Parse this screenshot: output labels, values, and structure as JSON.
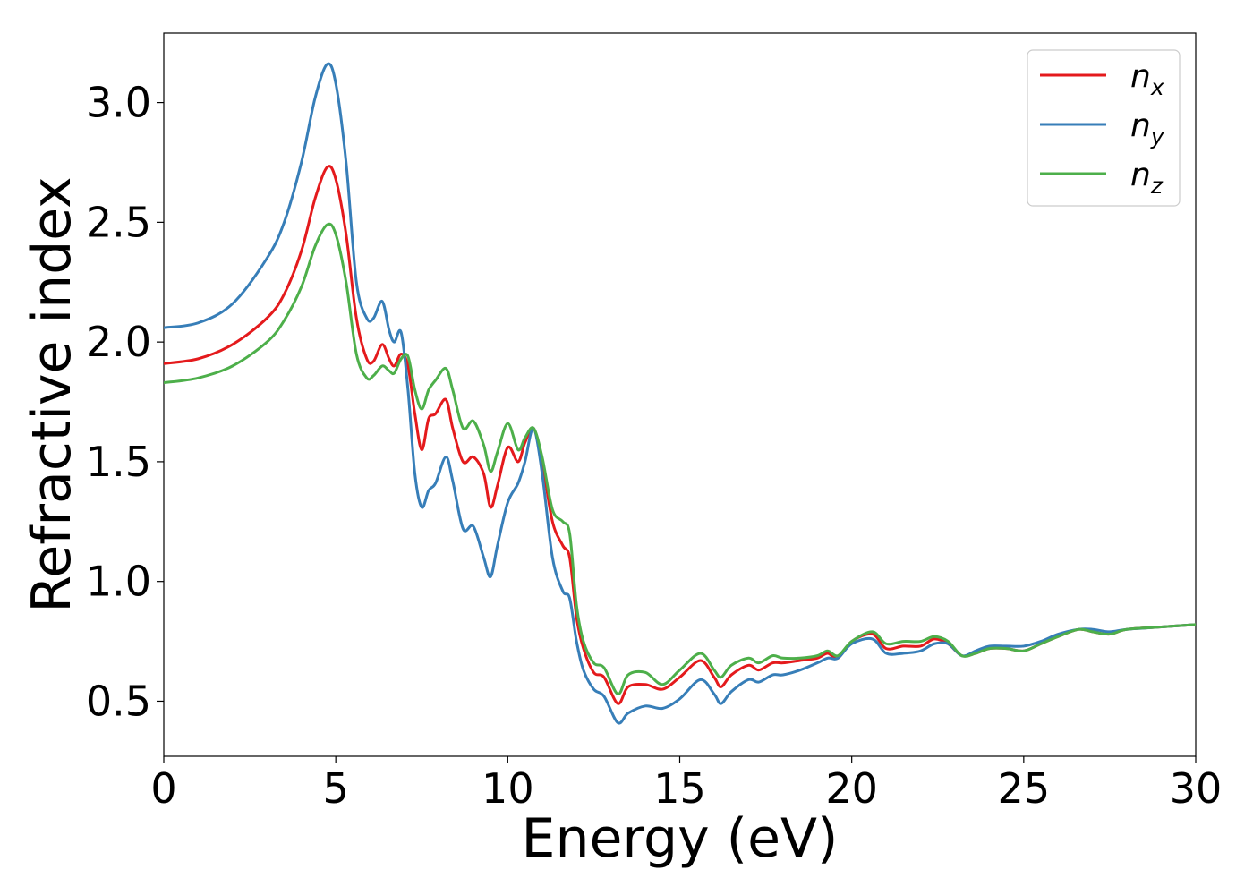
{
  "chart_data": {
    "type": "line",
    "title": "",
    "xlabel": "Energy (eV)",
    "ylabel": "Refractive index",
    "xlim": [
      0,
      30
    ],
    "ylim": [
      0.27,
      3.29
    ],
    "xticks": [
      0,
      5,
      10,
      15,
      20,
      25,
      30
    ],
    "yticks": [
      0.5,
      1.0,
      1.5,
      2.0,
      2.5,
      3.0
    ],
    "xtick_labels": [
      "0",
      "5",
      "10",
      "15",
      "20",
      "25",
      "30"
    ],
    "ytick_labels": [
      "0.5",
      "1.0",
      "1.5",
      "2.0",
      "2.5",
      "3.0"
    ],
    "grid": false,
    "legend_position": "top-right",
    "series": [
      {
        "name": "n",
        "subscript": "x",
        "color": "#e41a1c",
        "points": [
          [
            0,
            1.91
          ],
          [
            1,
            1.93
          ],
          [
            2,
            1.99
          ],
          [
            3,
            2.1
          ],
          [
            3.5,
            2.2
          ],
          [
            4,
            2.38
          ],
          [
            4.4,
            2.6
          ],
          [
            4.75,
            2.73
          ],
          [
            5,
            2.68
          ],
          [
            5.3,
            2.45
          ],
          [
            5.6,
            2.1
          ],
          [
            5.9,
            1.93
          ],
          [
            6.1,
            1.92
          ],
          [
            6.35,
            1.99
          ],
          [
            6.55,
            1.93
          ],
          [
            6.7,
            1.9
          ],
          [
            6.9,
            1.95
          ],
          [
            7.1,
            1.9
          ],
          [
            7.3,
            1.7
          ],
          [
            7.5,
            1.55
          ],
          [
            7.7,
            1.68
          ],
          [
            7.9,
            1.7
          ],
          [
            8.2,
            1.76
          ],
          [
            8.4,
            1.64
          ],
          [
            8.7,
            1.5
          ],
          [
            9,
            1.52
          ],
          [
            9.3,
            1.45
          ],
          [
            9.5,
            1.31
          ],
          [
            9.7,
            1.4
          ],
          [
            10,
            1.56
          ],
          [
            10.3,
            1.5
          ],
          [
            10.5,
            1.58
          ],
          [
            10.75,
            1.64
          ],
          [
            11,
            1.5
          ],
          [
            11.3,
            1.25
          ],
          [
            11.6,
            1.15
          ],
          [
            11.8,
            1.1
          ],
          [
            12,
            0.85
          ],
          [
            12.2,
            0.72
          ],
          [
            12.5,
            0.62
          ],
          [
            12.8,
            0.6
          ],
          [
            13.2,
            0.49
          ],
          [
            13.5,
            0.56
          ],
          [
            14,
            0.57
          ],
          [
            14.5,
            0.55
          ],
          [
            15,
            0.6
          ],
          [
            15.6,
            0.67
          ],
          [
            16,
            0.6
          ],
          [
            16.2,
            0.56
          ],
          [
            16.5,
            0.61
          ],
          [
            17,
            0.65
          ],
          [
            17.3,
            0.63
          ],
          [
            17.7,
            0.66
          ],
          [
            18,
            0.66
          ],
          [
            18.5,
            0.67
          ],
          [
            19,
            0.68
          ],
          [
            19.3,
            0.7
          ],
          [
            19.6,
            0.68
          ],
          [
            20,
            0.75
          ],
          [
            20.6,
            0.78
          ],
          [
            21,
            0.72
          ],
          [
            21.5,
            0.73
          ],
          [
            22,
            0.73
          ],
          [
            22.4,
            0.76
          ],
          [
            22.8,
            0.74
          ],
          [
            23.2,
            0.69
          ],
          [
            23.6,
            0.7
          ],
          [
            24,
            0.72
          ],
          [
            24.5,
            0.72
          ],
          [
            25,
            0.71
          ],
          [
            25.5,
            0.74
          ],
          [
            26,
            0.77
          ],
          [
            26.6,
            0.8
          ],
          [
            27,
            0.79
          ],
          [
            27.5,
            0.78
          ],
          [
            28,
            0.8
          ],
          [
            29,
            0.81
          ],
          [
            30,
            0.82
          ]
        ]
      },
      {
        "name": "n",
        "subscript": "y",
        "color": "#377eb8",
        "points": [
          [
            0,
            2.06
          ],
          [
            1,
            2.08
          ],
          [
            2,
            2.16
          ],
          [
            3,
            2.35
          ],
          [
            3.5,
            2.5
          ],
          [
            4,
            2.75
          ],
          [
            4.4,
            3.02
          ],
          [
            4.75,
            3.16
          ],
          [
            5,
            3.08
          ],
          [
            5.3,
            2.75
          ],
          [
            5.6,
            2.25
          ],
          [
            5.9,
            2.1
          ],
          [
            6.1,
            2.1
          ],
          [
            6.35,
            2.17
          ],
          [
            6.55,
            2.05
          ],
          [
            6.7,
            2.0
          ],
          [
            6.9,
            2.04
          ],
          [
            7.1,
            1.8
          ],
          [
            7.3,
            1.45
          ],
          [
            7.5,
            1.31
          ],
          [
            7.7,
            1.38
          ],
          [
            7.9,
            1.41
          ],
          [
            8.2,
            1.52
          ],
          [
            8.4,
            1.42
          ],
          [
            8.7,
            1.22
          ],
          [
            9,
            1.23
          ],
          [
            9.3,
            1.1
          ],
          [
            9.5,
            1.02
          ],
          [
            9.7,
            1.15
          ],
          [
            10,
            1.33
          ],
          [
            10.3,
            1.41
          ],
          [
            10.5,
            1.5
          ],
          [
            10.75,
            1.64
          ],
          [
            11,
            1.45
          ],
          [
            11.3,
            1.1
          ],
          [
            11.6,
            0.96
          ],
          [
            11.8,
            0.93
          ],
          [
            12,
            0.75
          ],
          [
            12.2,
            0.63
          ],
          [
            12.5,
            0.55
          ],
          [
            12.8,
            0.52
          ],
          [
            13.2,
            0.41
          ],
          [
            13.5,
            0.45
          ],
          [
            14,
            0.48
          ],
          [
            14.5,
            0.47
          ],
          [
            15,
            0.51
          ],
          [
            15.6,
            0.59
          ],
          [
            16,
            0.53
          ],
          [
            16.2,
            0.49
          ],
          [
            16.5,
            0.54
          ],
          [
            17,
            0.59
          ],
          [
            17.3,
            0.58
          ],
          [
            17.7,
            0.61
          ],
          [
            18,
            0.61
          ],
          [
            18.5,
            0.63
          ],
          [
            19,
            0.66
          ],
          [
            19.3,
            0.68
          ],
          [
            19.6,
            0.68
          ],
          [
            20,
            0.74
          ],
          [
            20.6,
            0.76
          ],
          [
            21,
            0.7
          ],
          [
            21.5,
            0.7
          ],
          [
            22,
            0.71
          ],
          [
            22.4,
            0.74
          ],
          [
            22.8,
            0.74
          ],
          [
            23.2,
            0.69
          ],
          [
            23.6,
            0.71
          ],
          [
            24,
            0.73
          ],
          [
            24.5,
            0.73
          ],
          [
            25,
            0.73
          ],
          [
            25.5,
            0.75
          ],
          [
            26,
            0.78
          ],
          [
            26.6,
            0.8
          ],
          [
            27,
            0.8
          ],
          [
            27.5,
            0.79
          ],
          [
            28,
            0.8
          ],
          [
            29,
            0.81
          ],
          [
            30,
            0.82
          ]
        ]
      },
      {
        "name": "n",
        "subscript": "z",
        "color": "#4daf4a",
        "points": [
          [
            0,
            1.83
          ],
          [
            1,
            1.85
          ],
          [
            2,
            1.9
          ],
          [
            3,
            2.0
          ],
          [
            3.5,
            2.09
          ],
          [
            4,
            2.23
          ],
          [
            4.4,
            2.4
          ],
          [
            4.75,
            2.49
          ],
          [
            5,
            2.45
          ],
          [
            5.3,
            2.25
          ],
          [
            5.6,
            1.95
          ],
          [
            5.9,
            1.85
          ],
          [
            6.1,
            1.86
          ],
          [
            6.35,
            1.9
          ],
          [
            6.55,
            1.88
          ],
          [
            6.7,
            1.87
          ],
          [
            6.9,
            1.93
          ],
          [
            7.1,
            1.94
          ],
          [
            7.3,
            1.8
          ],
          [
            7.5,
            1.72
          ],
          [
            7.7,
            1.8
          ],
          [
            7.9,
            1.84
          ],
          [
            8.2,
            1.89
          ],
          [
            8.4,
            1.8
          ],
          [
            8.7,
            1.64
          ],
          [
            9,
            1.67
          ],
          [
            9.3,
            1.57
          ],
          [
            9.5,
            1.46
          ],
          [
            9.7,
            1.54
          ],
          [
            10,
            1.66
          ],
          [
            10.3,
            1.55
          ],
          [
            10.5,
            1.6
          ],
          [
            10.75,
            1.64
          ],
          [
            11,
            1.52
          ],
          [
            11.3,
            1.3
          ],
          [
            11.6,
            1.25
          ],
          [
            11.8,
            1.2
          ],
          [
            12,
            0.9
          ],
          [
            12.2,
            0.75
          ],
          [
            12.5,
            0.66
          ],
          [
            12.8,
            0.64
          ],
          [
            13.2,
            0.53
          ],
          [
            13.5,
            0.61
          ],
          [
            14,
            0.62
          ],
          [
            14.5,
            0.57
          ],
          [
            15,
            0.63
          ],
          [
            15.6,
            0.7
          ],
          [
            16,
            0.63
          ],
          [
            16.2,
            0.6
          ],
          [
            16.5,
            0.65
          ],
          [
            17,
            0.68
          ],
          [
            17.3,
            0.66
          ],
          [
            17.7,
            0.69
          ],
          [
            18,
            0.68
          ],
          [
            18.5,
            0.68
          ],
          [
            19,
            0.69
          ],
          [
            19.3,
            0.71
          ],
          [
            19.6,
            0.69
          ],
          [
            20,
            0.75
          ],
          [
            20.6,
            0.79
          ],
          [
            21,
            0.74
          ],
          [
            21.5,
            0.75
          ],
          [
            22,
            0.75
          ],
          [
            22.4,
            0.77
          ],
          [
            22.8,
            0.75
          ],
          [
            23.2,
            0.69
          ],
          [
            23.6,
            0.7
          ],
          [
            24,
            0.72
          ],
          [
            24.5,
            0.72
          ],
          [
            25,
            0.71
          ],
          [
            25.5,
            0.74
          ],
          [
            26,
            0.77
          ],
          [
            26.6,
            0.8
          ],
          [
            27,
            0.79
          ],
          [
            27.5,
            0.78
          ],
          [
            28,
            0.8
          ],
          [
            29,
            0.81
          ],
          [
            30,
            0.82
          ]
        ]
      }
    ]
  }
}
